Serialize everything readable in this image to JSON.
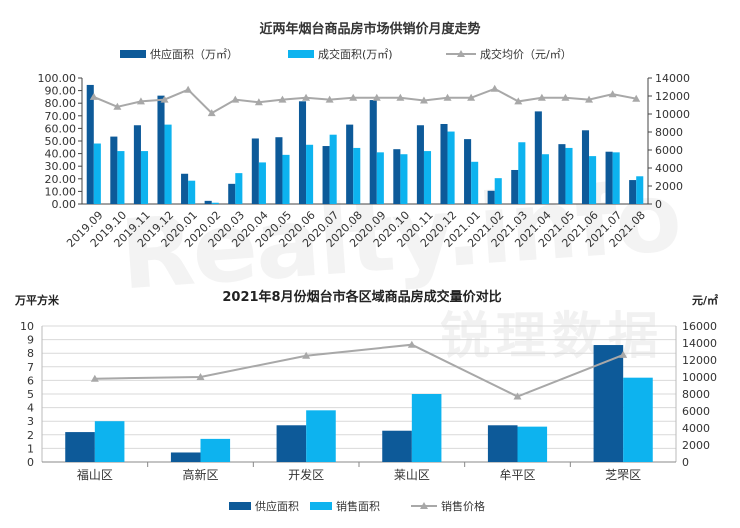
{
  "watermark": {
    "main": "Realty.info",
    "sub": "锐理数据"
  },
  "colors": {
    "supply": "#0d5a99",
    "transaction": "#0db3ef",
    "price": "#a8a8a8",
    "grid": "#d9d9d9",
    "axis": "#444444"
  },
  "chart_data": [
    {
      "type": "bar",
      "title": "近两年烟台商品房市场供销价月度走势",
      "categories": [
        "2019.09",
        "2019.10",
        "2019.11",
        "2019.12",
        "2020.01",
        "2020.02",
        "2020.03",
        "2020.04",
        "2020.05",
        "2020.06",
        "2020.07",
        "2020.08",
        "2020.09",
        "2020.10",
        "2020.11",
        "2020.12",
        "2021.01",
        "2021.02",
        "2021.03",
        "2021.04",
        "2021.05",
        "2021.06",
        "2021.07",
        "2021.08"
      ],
      "series": [
        {
          "name": "供应面积（万㎡）",
          "kind": "bar",
          "axis": "left",
          "values": [
            94.5,
            53.5,
            62.5,
            86,
            24,
            2.5,
            16,
            52,
            53,
            81.5,
            46,
            63,
            82.5,
            43.5,
            62.5,
            63.5,
            51.5,
            10.5,
            27,
            73.5,
            47.5,
            58.5,
            41.5,
            19
          ]
        },
        {
          "name": "成交面积(万㎡)",
          "kind": "bar",
          "axis": "left",
          "values": [
            48,
            42,
            42,
            63,
            18.5,
            1,
            24.5,
            33,
            39,
            47,
            55,
            44.5,
            41,
            39.5,
            42,
            57.5,
            33.5,
            20.5,
            49,
            39.5,
            44.5,
            38,
            41,
            22
          ]
        },
        {
          "name": "成交均价（元/㎡）",
          "kind": "line",
          "axis": "right",
          "values": [
            11900,
            10800,
            11400,
            11600,
            12700,
            10100,
            11600,
            11300,
            11600,
            11800,
            11600,
            11800,
            11800,
            11800,
            11500,
            11800,
            11800,
            12800,
            11400,
            11800,
            11800,
            11600,
            12200,
            11700
          ]
        }
      ],
      "left_axis": {
        "ylim": [
          0,
          100
        ],
        "ticks": [
          "0.00",
          "10.00",
          "20.00",
          "30.00",
          "40.00",
          "50.00",
          "60.00",
          "70.00",
          "80.00",
          "90.00",
          "100.00"
        ]
      },
      "right_axis": {
        "ylim": [
          0,
          14000
        ],
        "ticks": [
          "0",
          "2000",
          "4000",
          "6000",
          "8000",
          "10000",
          "12000",
          "14000"
        ]
      },
      "legend_position": "top",
      "grid": false
    },
    {
      "type": "bar",
      "title": "2021年8月份烟台市各区域商品房成交量价对比",
      "ylabel_left": "万平方米",
      "ylabel_right": "元/㎡",
      "categories": [
        "福山区",
        "高新区",
        "开发区",
        "莱山区",
        "牟平区",
        "芝罘区"
      ],
      "series": [
        {
          "name": "供应面积",
          "kind": "bar",
          "axis": "left",
          "values": [
            2.2,
            0.7,
            2.7,
            2.3,
            2.7,
            8.6
          ]
        },
        {
          "name": "销售面积",
          "kind": "bar",
          "axis": "left",
          "values": [
            3.0,
            1.7,
            3.8,
            5.0,
            2.6,
            6.2
          ]
        },
        {
          "name": "销售价格",
          "kind": "line",
          "axis": "right",
          "values": [
            9800,
            10000,
            12500,
            13800,
            7700,
            12600
          ]
        }
      ],
      "left_axis": {
        "ylim": [
          0,
          10
        ],
        "ticks": [
          "0",
          "1",
          "2",
          "3",
          "4",
          "5",
          "6",
          "7",
          "8",
          "9",
          "10"
        ]
      },
      "right_axis": {
        "ylim": [
          0,
          16000
        ],
        "ticks": [
          "0",
          "2000",
          "4000",
          "6000",
          "8000",
          "10000",
          "12000",
          "14000",
          "16000"
        ]
      },
      "legend_position": "bottom",
      "grid": true
    }
  ]
}
